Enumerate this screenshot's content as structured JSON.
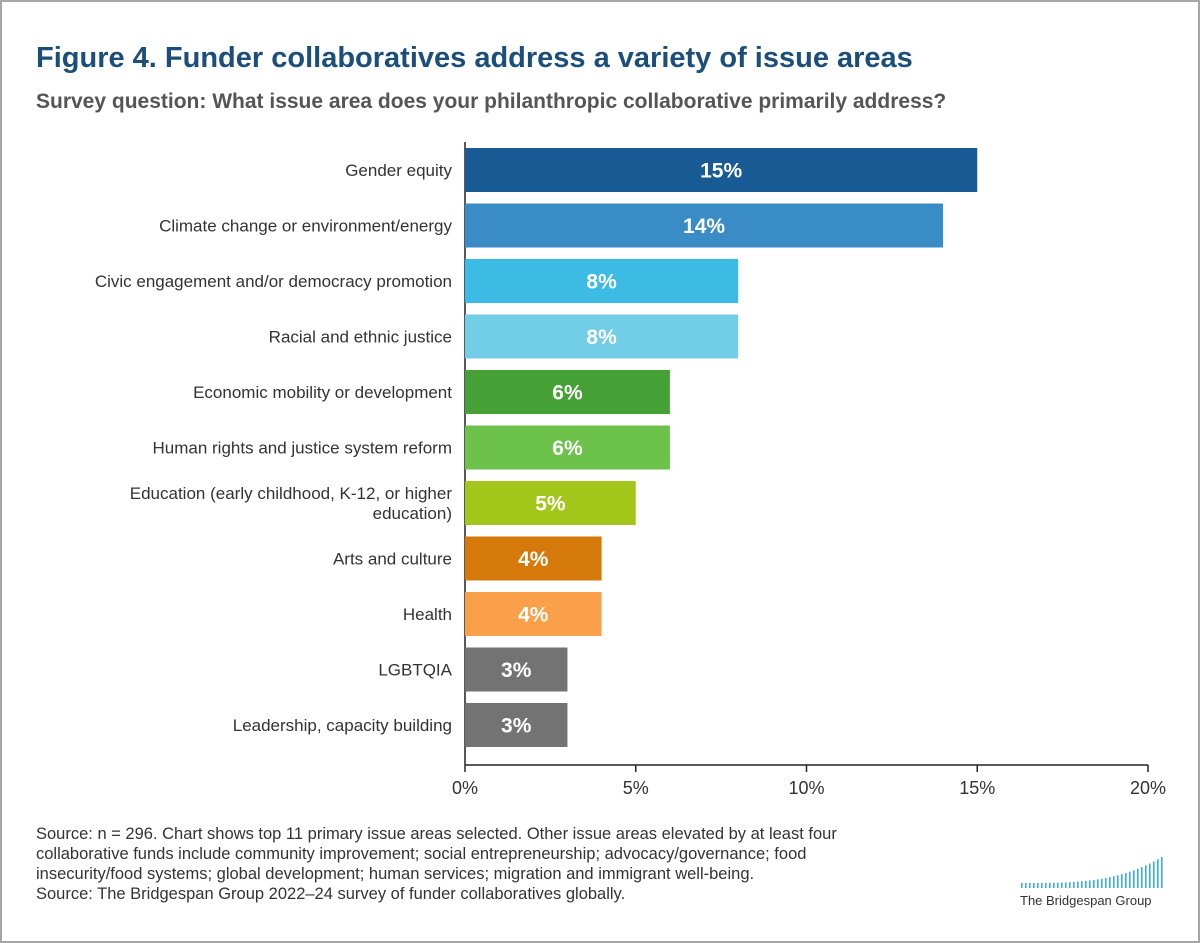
{
  "header": {
    "title": "Figure 4. Funder collaboratives address a variety of issue areas",
    "subtitle": "Survey question: What issue area does your philanthropic collaborative primarily address?"
  },
  "chart_data": {
    "type": "bar",
    "orientation": "horizontal",
    "categories": [
      [
        "Gender equity"
      ],
      [
        "Climate change or environment/energy"
      ],
      [
        "Civic engagement and/or democracy promotion"
      ],
      [
        "Racial and ethnic justice"
      ],
      [
        "Economic mobility or development"
      ],
      [
        "Human rights and justice system reform"
      ],
      [
        "Education (early childhood, K-12, or higher",
        "education)"
      ],
      [
        "Arts and culture"
      ],
      [
        "Health"
      ],
      [
        "LGBTQIA"
      ],
      [
        "Leadership, capacity building"
      ]
    ],
    "values": [
      15,
      14,
      8,
      8,
      6,
      6,
      5,
      4,
      4,
      3,
      3
    ],
    "value_labels": [
      "15%",
      "14%",
      "8%",
      "8%",
      "6%",
      "6%",
      "5%",
      "4%",
      "4%",
      "3%",
      "3%"
    ],
    "colors": [
      "#185a94",
      "#3a8cc6",
      "#3cbbe5",
      "#72cde6",
      "#45a036",
      "#6cc24a",
      "#a3c61a",
      "#d57a0a",
      "#fba04a",
      "#737373",
      "#737373"
    ],
    "xlim": [
      0,
      20
    ],
    "xticks": [
      0,
      5,
      10,
      15,
      20
    ],
    "xtick_labels": [
      "0%",
      "5%",
      "10%",
      "15%",
      "20%"
    ],
    "grid": false,
    "xlabel": "",
    "ylabel": ""
  },
  "footnote": {
    "lines": [
      "Source: n = 296. Chart shows top 11 primary issue areas selected. Other issue areas elevated by at least four",
      "collaborative funds include community improvement; social entrepreneurship; advocacy/governance; food",
      "insecurity/food systems; global development; human services; migration and immigrant well-being.",
      "Source: The Bridgespan Group 2022–24 survey of funder collaboratives globally."
    ]
  },
  "logo": {
    "text": "The Bridgespan Group",
    "color": "#3aaee0"
  }
}
